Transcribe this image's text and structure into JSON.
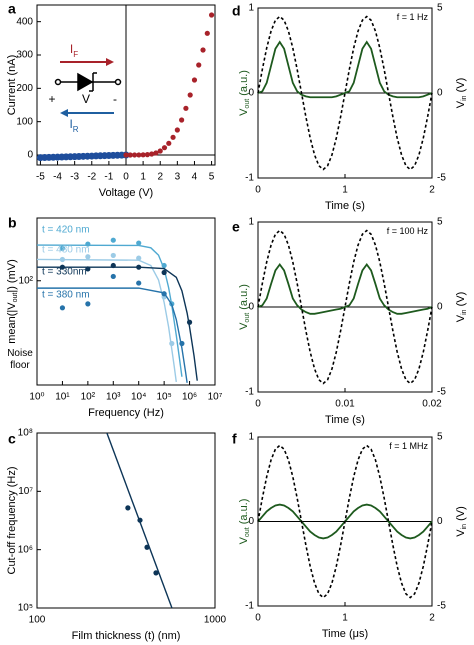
{
  "chart_data": [
    {
      "type": "scatter",
      "panel_label": "a",
      "xlabel": "Voltage (V)",
      "ylabel": "Current (nA)",
      "xlim": [
        -5.2,
        5.2
      ],
      "xticks": [
        -5,
        -4,
        -3,
        -2,
        -1,
        0,
        1,
        2,
        3,
        4,
        5
      ],
      "ylim": [
        -30,
        450
      ],
      "yticks": [
        0,
        100,
        200,
        300,
        400
      ],
      "zero_lines": [
        "x",
        "y"
      ],
      "series": [
        {
          "color": "#1f4e9c",
          "x": [
            -5,
            -4.75,
            -4.5,
            -4.25,
            -4,
            -3.75,
            -3.5,
            -3.25,
            -3,
            -2.75,
            -2.5,
            -2.25,
            -2,
            -1.75,
            -1.5,
            -1.25,
            -1,
            -0.75,
            -0.5,
            -0.25,
            0
          ],
          "values": [
            -8,
            -7.6,
            -7.2,
            -6.8,
            -6.4,
            -6,
            -5.6,
            -5.2,
            -4.8,
            -4.4,
            -4,
            -3.6,
            -3.2,
            -2.8,
            -2.4,
            -2,
            -1.6,
            -1.2,
            -0.8,
            -0.4,
            0
          ]
        },
        {
          "color": "#a8222a",
          "x": [
            0,
            0.25,
            0.5,
            0.75,
            1,
            1.25,
            1.5,
            1.75,
            2,
            2.25,
            2.5,
            2.75,
            3,
            3.25,
            3.5,
            3.75,
            4,
            4.25,
            4.5,
            4.75,
            5
          ],
          "values": [
            0,
            0,
            0.1,
            0.2,
            0.5,
            1.2,
            3,
            6,
            12,
            22,
            35,
            53,
            75,
            105,
            140,
            180,
            225,
            270,
            315,
            365,
            420
          ]
        }
      ],
      "annotations": [
        {
          "text": "I",
          "sub": "F",
          "color": "#a8222a"
        },
        {
          "text": "I",
          "sub": "R",
          "color": "#1f5fa0"
        },
        {
          "text": "+"
        },
        {
          "text": "V"
        },
        {
          "text": "-"
        }
      ]
    },
    {
      "type": "scatter",
      "panel_label": "b",
      "xlabel": "Frequency (Hz)",
      "ylabel": {
        "main": "mean(|V",
        "sub": "out",
        "rest": "|) (mV)"
      },
      "xscale": "log",
      "yscale": "log",
      "xlim": [
        1,
        10000000
      ],
      "xticks": [
        {
          "value": 1,
          "label": "10⁰"
        },
        {
          "value": 10,
          "label": "10¹"
        },
        {
          "value": 100,
          "label": "10²"
        },
        {
          "value": 1000,
          "label": "10³"
        },
        {
          "value": 10000,
          "label": "10⁴"
        },
        {
          "value": 100000,
          "label": "10⁵"
        },
        {
          "value": 1000000,
          "label": "10⁶"
        },
        {
          "value": 10000000,
          "label": "10⁷"
        }
      ],
      "ylim": [
        10,
        400
      ],
      "yticks": [
        {
          "value": 100,
          "label": "10²"
        }
      ],
      "annotations": [
        {
          "text": "Noise"
        },
        {
          "text": "floor"
        }
      ],
      "series": [
        {
          "name": "t = 420 nm",
          "color": "#4fa9d1",
          "x": [
            10,
            100,
            1000,
            10000,
            100000,
            200000
          ],
          "values": [
            205,
            225,
            245,
            230,
            140,
            60
          ],
          "fit_x": [
            1,
            10000,
            30000,
            60000,
            100000,
            150000,
            200000,
            300000,
            400000,
            500000
          ],
          "fit": [
            220,
            218,
            207,
            176,
            130,
            86,
            58,
            30,
            18,
            12
          ]
        },
        {
          "name": "t = 480 nm",
          "color": "#9ccbe6",
          "x": [
            10,
            100,
            1000,
            10000,
            100000,
            200000
          ],
          "values": [
            160,
            170,
            175,
            165,
            70,
            25
          ],
          "fit_x": [
            1,
            10000,
            30000,
            60000,
            100000,
            150000,
            200000,
            250000,
            300000
          ],
          "fit": [
            160,
            157.5,
            140,
            102,
            62,
            36,
            22,
            15,
            10.7
          ]
        },
        {
          "name": "t = 330nm",
          "color": "#0d3557",
          "x": [
            10,
            100,
            1000,
            10000,
            100000,
            1000000
          ],
          "values": [
            135,
            130,
            140,
            135,
            120,
            40
          ],
          "fit_x": [
            1,
            10000,
            100000,
            300000,
            500000,
            800000,
            1000000,
            1500000,
            2000000
          ],
          "fit": [
            135,
            135,
            131,
            108,
            80,
            49,
            36,
            19,
            11
          ]
        },
        {
          "name": "t = 380 nm",
          "color": "#2673aa",
          "x": [
            10,
            100,
            1000,
            10000,
            100000,
            500000
          ],
          "values": [
            55,
            60,
            110,
            95,
            75,
            25
          ],
          "fit_x": [
            1,
            10000,
            100000,
            200000,
            300000,
            500000,
            700000,
            800000
          ],
          "fit": [
            85,
            85,
            76.5,
            59,
            42.5,
            22.5,
            13.2,
            10.5
          ]
        }
      ]
    },
    {
      "type": "scatter",
      "panel_label": "c",
      "xlabel": "Film thickness (t) (nm)",
      "ylabel": "Cut-off frequency (Hz)",
      "xscale": "log",
      "yscale": "log",
      "xlim": [
        100,
        1000
      ],
      "xticks": [
        100,
        1000
      ],
      "ylim": [
        100000,
        100000000
      ],
      "yticks": [
        {
          "value": 100000,
          "label": "10⁵"
        },
        {
          "value": 1000000,
          "label": "10⁶"
        },
        {
          "value": 10000000,
          "label": "10⁷"
        },
        {
          "value": 100000000,
          "label": "10⁸"
        }
      ],
      "series": [
        {
          "color": "#0d3557",
          "x": [
            324,
            379,
            415,
            466
          ],
          "values": [
            5200000,
            3200000,
            1100000,
            400000
          ],
          "fit_x": [
            247,
            573
          ],
          "fit": [
            100000000,
            100000
          ]
        }
      ]
    },
    {
      "type": "line",
      "panel_label": "d",
      "xlabel": "Time (s)",
      "ylabel": {
        "main": "V",
        "sub": "out",
        "rest": " (a.u.)"
      },
      "y2label": {
        "main": "V",
        "sub": "in",
        "rest": " (V)"
      },
      "annotations": [
        {
          "text": "f = 1 Hz"
        }
      ],
      "zero_lines": [
        "y"
      ],
      "xlim": [
        0,
        2
      ],
      "xticks": [
        0,
        1,
        2
      ],
      "ylim": [
        -1,
        1
      ],
      "yticks": [
        -1,
        0,
        1
      ],
      "y2lim": [
        -5,
        5
      ],
      "y2ticks": [
        -5,
        0,
        5
      ],
      "x": [
        0,
        0.05,
        0.1,
        0.15,
        0.2,
        0.25,
        0.3,
        0.35,
        0.4,
        0.45,
        0.5,
        0.55,
        0.6,
        0.65,
        0.7,
        0.75,
        0.8,
        0.85,
        0.9,
        0.95,
        1,
        1.05,
        1.1,
        1.15,
        1.2,
        1.25,
        1.3,
        1.35,
        1.4,
        1.45,
        1.5,
        1.55,
        1.6,
        1.65,
        1.7,
        1.75,
        1.8,
        1.85,
        1.9,
        1.95,
        2
      ],
      "series": [
        {
          "color": "#1e5a1e",
          "values": [
            0,
            0.02,
            0.12,
            0.32,
            0.52,
            0.6,
            0.52,
            0.32,
            0.12,
            0.02,
            -0.02,
            -0.04,
            -0.05,
            -0.05,
            -0.05,
            -0.05,
            -0.05,
            -0.05,
            -0.04,
            -0.02,
            0,
            0.02,
            0.12,
            0.32,
            0.52,
            0.6,
            0.52,
            0.32,
            0.12,
            0.02,
            -0.02,
            -0.04,
            -0.05,
            -0.05,
            -0.05,
            -0.05,
            -0.05,
            -0.05,
            -0.04,
            -0.02,
            0
          ]
        },
        {
          "color": "#000000",
          "dashed": true,
          "axis": "y2",
          "values": [
            0,
            1.39,
            2.65,
            3.64,
            4.28,
            4.5,
            4.28,
            3.64,
            2.65,
            1.39,
            0,
            -1.39,
            -2.65,
            -3.64,
            -4.28,
            -4.5,
            -4.28,
            -3.64,
            -2.65,
            -1.39,
            0,
            1.39,
            2.65,
            3.64,
            4.28,
            4.5,
            4.28,
            3.64,
            2.65,
            1.39,
            0,
            -1.39,
            -2.65,
            -3.64,
            -4.28,
            -4.5,
            -4.28,
            -3.64,
            -2.65,
            -1.39,
            0
          ]
        }
      ]
    },
    {
      "type": "line",
      "panel_label": "e",
      "xlabel": "Time (s)",
      "ylabel": {
        "main": "V",
        "sub": "out",
        "rest": " (a.u.)"
      },
      "y2label": {
        "main": "V",
        "sub": "in",
        "rest": " (V)"
      },
      "annotations": [
        {
          "text": "f = 100 Hz"
        }
      ],
      "zero_lines": [
        "y"
      ],
      "xlim": [
        0,
        0.02
      ],
      "xticks": [
        0,
        0.01,
        0.02
      ],
      "ylim": [
        -1,
        1
      ],
      "yticks": [
        -1,
        0,
        1
      ],
      "y2lim": [
        -5,
        5
      ],
      "y2ticks": [
        -5,
        0,
        5
      ],
      "x": [
        0,
        0.0005,
        0.001,
        0.0015,
        0.002,
        0.0025,
        0.003,
        0.0035,
        0.004,
        0.0045,
        0.005,
        0.0055,
        0.006,
        0.0065,
        0.007,
        0.0075,
        0.008,
        0.0085,
        0.009,
        0.0095,
        0.01,
        0.0105,
        0.011,
        0.0115,
        0.012,
        0.0125,
        0.013,
        0.0135,
        0.014,
        0.0145,
        0.015,
        0.0155,
        0.016,
        0.0165,
        0.017,
        0.0175,
        0.018,
        0.0185,
        0.019,
        0.0195,
        0.02
      ],
      "series": [
        {
          "color": "#1e5a1e",
          "values": [
            0,
            0.02,
            0.1,
            0.27,
            0.43,
            0.5,
            0.43,
            0.27,
            0.1,
            0.02,
            -0.03,
            -0.06,
            -0.08,
            -0.08,
            -0.07,
            -0.06,
            -0.05,
            -0.04,
            -0.03,
            -0.02,
            0,
            0.02,
            0.1,
            0.27,
            0.43,
            0.5,
            0.43,
            0.27,
            0.1,
            0.02,
            -0.03,
            -0.06,
            -0.08,
            -0.08,
            -0.07,
            -0.06,
            -0.05,
            -0.04,
            -0.03,
            -0.02,
            0
          ]
        },
        {
          "color": "#000000",
          "dashed": true,
          "axis": "y2",
          "values": [
            0,
            1.39,
            2.65,
            3.64,
            4.28,
            4.5,
            4.28,
            3.64,
            2.65,
            1.39,
            0,
            -1.39,
            -2.65,
            -3.64,
            -4.28,
            -4.5,
            -4.28,
            -3.64,
            -2.65,
            -1.39,
            0,
            1.39,
            2.65,
            3.64,
            4.28,
            4.5,
            4.28,
            3.64,
            2.65,
            1.39,
            0,
            -1.39,
            -2.65,
            -3.64,
            -4.28,
            -4.5,
            -4.28,
            -3.64,
            -2.65,
            -1.39,
            0
          ]
        }
      ]
    },
    {
      "type": "line",
      "panel_label": "f",
      "xlabel": "Time (μs)",
      "ylabel": {
        "main": "V",
        "sub": "out",
        "rest": " (a.u.)"
      },
      "y2label": {
        "main": "V",
        "sub": "in",
        "rest": " (V)"
      },
      "annotations": [
        {
          "text": "f = 1 MHz"
        }
      ],
      "zero_lines": [
        "y"
      ],
      "xlim": [
        0,
        2
      ],
      "xticks": [
        0,
        1,
        2
      ],
      "ylim": [
        -1,
        1
      ],
      "yticks": [
        -1,
        0,
        1
      ],
      "y2lim": [
        -5,
        5
      ],
      "y2ticks": [
        -5,
        0,
        5
      ],
      "x": [
        0,
        0.05,
        0.1,
        0.15,
        0.2,
        0.25,
        0.3,
        0.35,
        0.4,
        0.45,
        0.5,
        0.55,
        0.6,
        0.65,
        0.7,
        0.75,
        0.8,
        0.85,
        0.9,
        0.95,
        1,
        1.05,
        1.1,
        1.15,
        1.2,
        1.25,
        1.3,
        1.35,
        1.4,
        1.45,
        1.5,
        1.55,
        1.6,
        1.65,
        1.7,
        1.75,
        1.8,
        1.85,
        1.9,
        1.95,
        2
      ],
      "series": [
        {
          "color": "#1e5a1e",
          "values": [
            0,
            0.06,
            0.12,
            0.16,
            0.19,
            0.2,
            0.19,
            0.16,
            0.12,
            0.06,
            0,
            -0.06,
            -0.12,
            -0.16,
            -0.19,
            -0.2,
            -0.19,
            -0.16,
            -0.12,
            -0.06,
            0,
            0.06,
            0.12,
            0.16,
            0.19,
            0.2,
            0.19,
            0.16,
            0.12,
            0.06,
            0,
            -0.06,
            -0.12,
            -0.16,
            -0.19,
            -0.2,
            -0.19,
            -0.16,
            -0.12,
            -0.06,
            0
          ]
        },
        {
          "color": "#000000",
          "dashed": true,
          "axis": "y2",
          "values": [
            0,
            1.39,
            2.65,
            3.64,
            4.28,
            4.5,
            4.28,
            3.64,
            2.65,
            1.39,
            0,
            -1.39,
            -2.65,
            -3.64,
            -4.28,
            -4.5,
            -4.28,
            -3.64,
            -2.65,
            -1.39,
            0,
            1.39,
            2.65,
            3.64,
            4.28,
            4.5,
            4.28,
            3.64,
            2.65,
            1.39,
            0,
            -1.39,
            -2.65,
            -3.64,
            -4.28,
            -4.5,
            -4.28,
            -3.64,
            -2.65,
            -1.39,
            0
          ]
        }
      ]
    }
  ]
}
